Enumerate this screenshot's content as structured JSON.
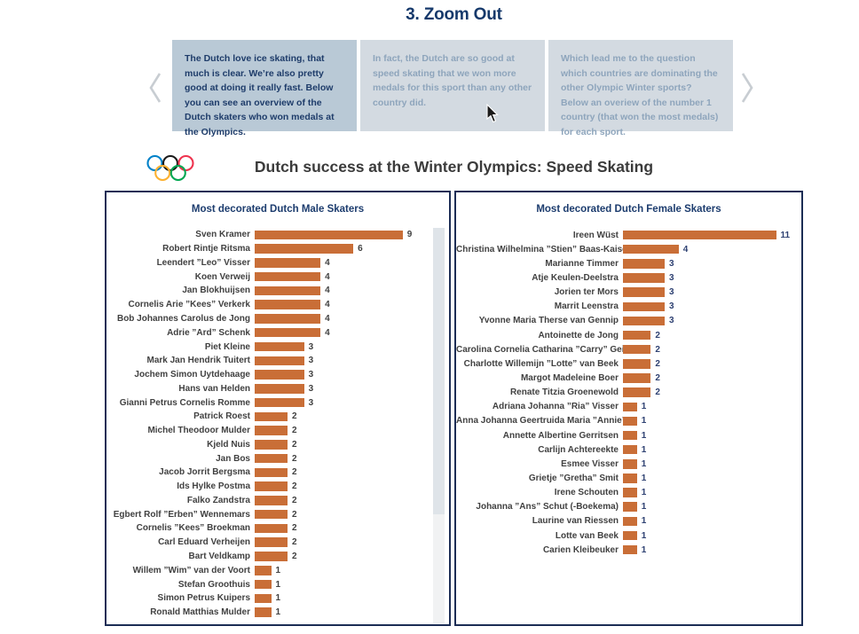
{
  "page_title": "3. Zoom Out",
  "carousel": {
    "prev_icon": "chevron-left",
    "next_icon": "chevron-right",
    "cards": [
      {
        "text": "The Dutch love ice skating, that much is clear. We’re also pretty good at doing it really fast. Below you can see an overview of the Dutch skaters who won medals at the Olympics.",
        "active": true
      },
      {
        "text": "In fact, the Dutch are so good at speed skating that we won more medals for this sport than any other country did.",
        "active": false
      },
      {
        "text": "Which lead me to the question which countries are dominating the other Olympic Winter sports? Below an overiew of the number 1 country (that won the most medals) for each sport.",
        "active": false
      }
    ]
  },
  "header": {
    "logo": "olympic-rings",
    "title": "Dutch success at the Winter Olympics: Speed Skating"
  },
  "colors": {
    "accent_navy": "#16396b",
    "panel_border": "#1c2d55",
    "bar_orange": "#c96e37",
    "card_active_bg": "#b9c9d6",
    "card_inactive_bg": "#d3dae1",
    "card_active_text": "#1e3c6a",
    "card_inactive_text": "#8ea5bc",
    "scroll_thumb": "#dfe4e9",
    "scroll_track": "#f1f2f3",
    "ring_blue": "#0081c8",
    "ring_black": "#1a1a1a",
    "ring_red": "#ee334e",
    "ring_yellow": "#fcb131",
    "ring_green": "#00a651"
  },
  "chart_data": [
    {
      "type": "bar",
      "orientation": "horizontal",
      "title": "Most decorated Dutch Male Skaters",
      "categories": [
        "Sven Kramer",
        "Robert Rintje Ritsma",
        "Leendert ”Leo” Visser",
        "Koen Verweij",
        "Jan Blokhuijsen",
        "Cornelis Arie ”Kees” Verkerk",
        "Bob Johannes Carolus de Jong",
        "Adrie ”Ard” Schenk",
        "Piet Kleine",
        "Mark Jan Hendrik Tuitert",
        "Jochem Simon Uytdehaage",
        "Hans van Helden",
        "Gianni Petrus Cornelis Romme",
        "Patrick Roest",
        "Michel Theodoor Mulder",
        "Kjeld Nuis",
        "Jan Bos",
        "Jacob Jorrit Bergsma",
        "Ids Hylke Postma",
        "Falko Zandstra",
        "Egbert Rolf ”Erben” Wennemars",
        "Cornelis ”Kees” Broekman",
        "Carl Eduard Verheijen",
        "Bart Veldkamp",
        "Willem ”Wim” van der Voort",
        "Stefan Groothuis",
        "Simon Petrus Kuipers",
        "Ronald Matthias Mulder"
      ],
      "values": [
        9,
        6,
        4,
        4,
        4,
        4,
        4,
        4,
        3,
        3,
        3,
        3,
        3,
        2,
        2,
        2,
        2,
        2,
        2,
        2,
        2,
        2,
        2,
        2,
        1,
        1,
        1,
        1
      ],
      "xlim": [
        0,
        10.8
      ],
      "bar_color": "#c96e37",
      "value_label_color": "#414141",
      "grid": false,
      "legend": false,
      "scrollbar": true
    },
    {
      "type": "bar",
      "orientation": "horizontal",
      "title": "Most decorated Dutch Female Skaters",
      "categories": [
        "Ireen Wüst",
        "Christina Wilhelmina ”Stien” Baas-Kaiser",
        "Marianne Timmer",
        "Atje Keulen-Deelstra",
        "Jorien ter Mors",
        "Marrit Leenstra",
        "Yvonne Maria Therse van Gennip",
        "Antoinette de Jong",
        "Carolina Cornelia Catharina ”Carry” Geijss..",
        "Charlotte Willemijn ”Lotte” van Beek",
        "Margot Madeleine Boer",
        "Renate Titzia Groenewold",
        "Adriana Johanna ”Ria” Visser",
        "Anna Johanna Geertruida Maria ”Annie” B..",
        "Annette Albertine Gerritsen",
        "Carlijn Achtereekte",
        "Esmee Visser",
        "Grietje ”Gretha” Smit",
        "Irene Schouten",
        "Johanna ”Ans” Schut (-Boekema)",
        "Laurine van Riessen",
        "Lotte van Beek",
        "Carien Kleibeuker"
      ],
      "values": [
        11,
        4,
        3,
        3,
        3,
        3,
        3,
        2,
        2,
        2,
        2,
        2,
        1,
        1,
        1,
        1,
        1,
        1,
        1,
        1,
        1,
        1,
        1
      ],
      "xlim": [
        0,
        11.8
      ],
      "bar_color": "#c96e37",
      "value_label_color": "#2e4172",
      "grid": false,
      "legend": false,
      "scrollbar": false
    }
  ]
}
